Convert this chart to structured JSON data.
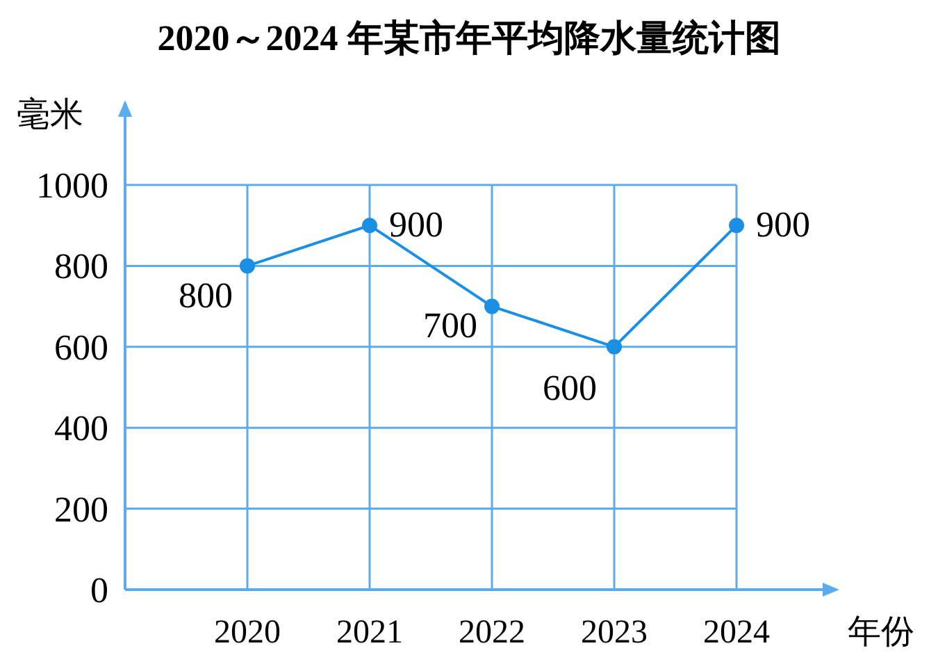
{
  "chart_data": {
    "type": "line",
    "title": "2020～2024 年某市年平均降水量统计图",
    "ylabel": "毫米",
    "xlabel": "年份",
    "categories": [
      "2020",
      "2021",
      "2022",
      "2023",
      "2024"
    ],
    "series": [
      {
        "color": "#1a8fe3",
        "values": [
          800,
          900,
          700,
          600,
          900
        ]
      }
    ],
    "ylim": [
      0,
      1000
    ],
    "yticks": [
      0,
      200,
      400,
      600,
      800,
      1000
    ],
    "grid": true,
    "marker": "circle",
    "line_style": "solid",
    "data_labels": true
  }
}
